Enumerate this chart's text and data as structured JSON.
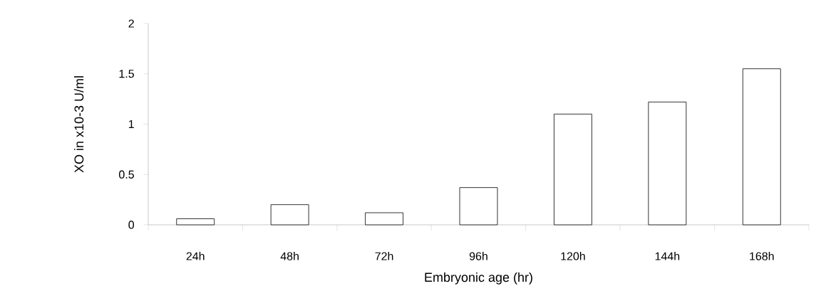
{
  "chart_data": {
    "type": "bar",
    "xlabel": "Embryonic age (hr)",
    "ylabel": "XO in x10-3 U/ml",
    "categories": [
      "24h",
      "48h",
      "72h",
      "96h",
      "120h",
      "144h",
      "168h"
    ],
    "values": [
      0.06,
      0.2,
      0.12,
      0.37,
      1.1,
      1.22,
      1.55
    ],
    "color": "#ffffff",
    "ylim": [
      0,
      2
    ],
    "yticks": [
      0,
      0.5,
      1,
      1.5,
      2
    ]
  }
}
